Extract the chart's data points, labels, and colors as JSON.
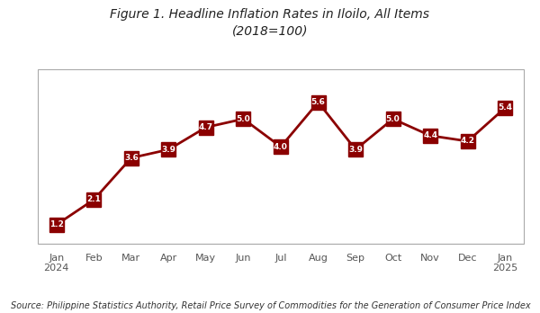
{
  "title_line1": "Figure 1. Headline Inflation Rates in Iloilo, All Items",
  "title_line2": "(2018=100)",
  "source": "Source: Philippine Statistics Authority, Retail Price Survey of Commodities for the Generation of Consumer Price Index",
  "x_labels": [
    "Jan\n2024",
    "Feb",
    "Mar",
    "Apr",
    "May",
    "Jun",
    "Jul",
    "Aug",
    "Sep",
    "Oct",
    "Nov",
    "Dec",
    "Jan\n2025"
  ],
  "values": [
    1.2,
    2.1,
    3.6,
    3.9,
    4.7,
    5.0,
    4.0,
    5.6,
    3.9,
    5.0,
    4.4,
    4.2,
    5.4
  ],
  "line_color": "#8B0000",
  "marker_color": "#8B0000",
  "marker_size": 11,
  "line_width": 2.0,
  "background_color": "#ffffff",
  "plot_bg_color": "#ffffff",
  "title_fontsize": 10,
  "label_fontsize": 8,
  "source_fontsize": 7,
  "data_label_fontsize": 6.5,
  "ylim_min": 0.5,
  "ylim_max": 6.8,
  "box_edge_color": "#aaaaaa",
  "bottom_line_color": "#aaaaaa"
}
